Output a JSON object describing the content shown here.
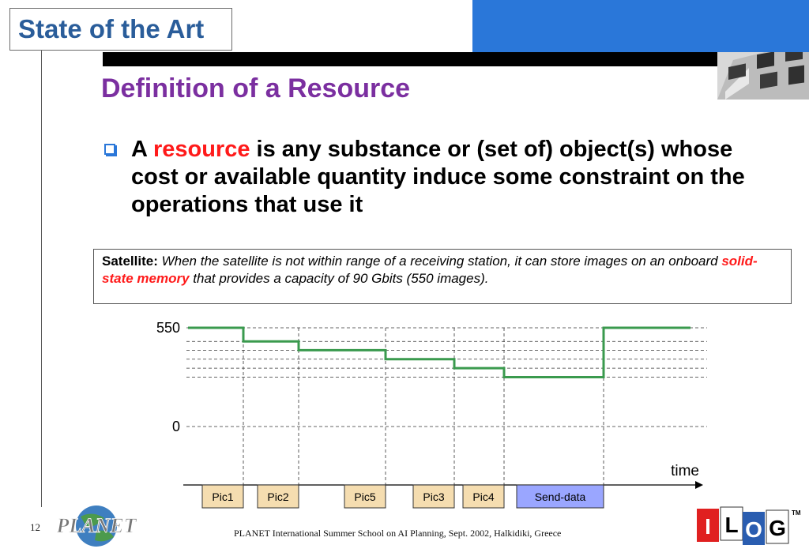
{
  "header": {
    "section_title": "State of the Art",
    "slide_title": "Definition of a Resource"
  },
  "bullet": {
    "pre": "A ",
    "highlight": "resource",
    "post": " is any substance or (set of) object(s) whose cost or available quantity induce some constraint on the operations that use it"
  },
  "example": {
    "label": "Satellite:",
    "text1": " When the satellite is not within range of a receiving station, it can store images on an onboard ",
    "highlight": "solid-state memory",
    "text2": " that provides a capacity of 90 Gbits (550 images)."
  },
  "chart_data": {
    "type": "line",
    "ytick_top": "550",
    "ytick_bottom": "0",
    "xlabel": "time",
    "ylim": [
      0,
      550
    ],
    "step_levels": [
      550,
      474,
      425,
      375,
      325,
      275,
      550
    ],
    "tasks": [
      {
        "label": "Pic1",
        "color": "#f5ddb0"
      },
      {
        "label": "Pic2",
        "color": "#f5ddb0"
      },
      {
        "label": "Pic5",
        "color": "#f5ddb0"
      },
      {
        "label": "Pic3",
        "color": "#f5ddb0"
      },
      {
        "label": "Pic4",
        "color": "#f5ddb0"
      },
      {
        "label": "Send-data",
        "color": "#9aa6ff"
      }
    ],
    "line_color": "#3a9a4e"
  },
  "footer": {
    "page_number": "12",
    "text": "PLANET International Summer School on AI Planning, Sept. 2002, Halkidiki, Greece",
    "planet_logo_text": "PLANET",
    "ilog_logo_letters": [
      "I",
      "L",
      "O",
      "G"
    ],
    "tm": "TM"
  },
  "colors": {
    "accent_blue": "#2a77d9",
    "title_purple": "#7b2fa0",
    "section_blue": "#2a5d9a",
    "highlight_red": "#ff1a1a"
  }
}
